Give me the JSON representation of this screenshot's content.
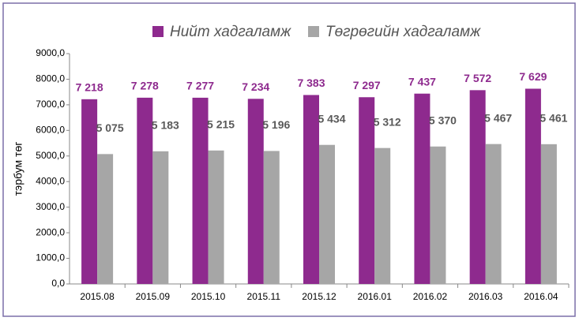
{
  "chart_data": {
    "type": "bar",
    "categories": [
      "2015.08",
      "2015.09",
      "2015.10",
      "2015.11",
      "2015.12",
      "2016.01",
      "2016.02",
      "2016.03",
      "2016.04"
    ],
    "series": [
      {
        "name": "Нийт хадгаламж",
        "color": "#8e2a8e",
        "values": [
          7218,
          7278,
          7277,
          7234,
          7383,
          7297,
          7437,
          7572,
          7629
        ],
        "value_labels": [
          "7 218",
          "7 278",
          "7 277",
          "7 234",
          "7 383",
          "7 297",
          "7 437",
          "7 572",
          "7 629"
        ]
      },
      {
        "name": "Төгрөгийн хадгаламж",
        "color": "#a6a6a6",
        "values": [
          5075,
          5183,
          5215,
          5196,
          5434,
          5312,
          5370,
          5467,
          5461
        ],
        "value_labels": [
          "5 075",
          "5 183",
          "5 215",
          "5 196",
          "5 434",
          "5 312",
          "5 370",
          "5 467",
          "5 461"
        ]
      }
    ],
    "ylabel": "тэрбум төг",
    "ylim": [
      0,
      9000
    ],
    "yticks": [
      {
        "value": 0,
        "label": "0,0"
      },
      {
        "value": 1000,
        "label": "1000,0"
      },
      {
        "value": 2000,
        "label": "2000,0"
      },
      {
        "value": 3000,
        "label": "3000,0"
      },
      {
        "value": 4000,
        "label": "4000,0"
      },
      {
        "value": 5000,
        "label": "5000,0"
      },
      {
        "value": 6000,
        "label": "6000,0"
      },
      {
        "value": 7000,
        "label": "7000,0"
      },
      {
        "value": 8000,
        "label": "8000,0"
      },
      {
        "value": 9000,
        "label": "9000,0"
      }
    ],
    "legend": "top"
  }
}
